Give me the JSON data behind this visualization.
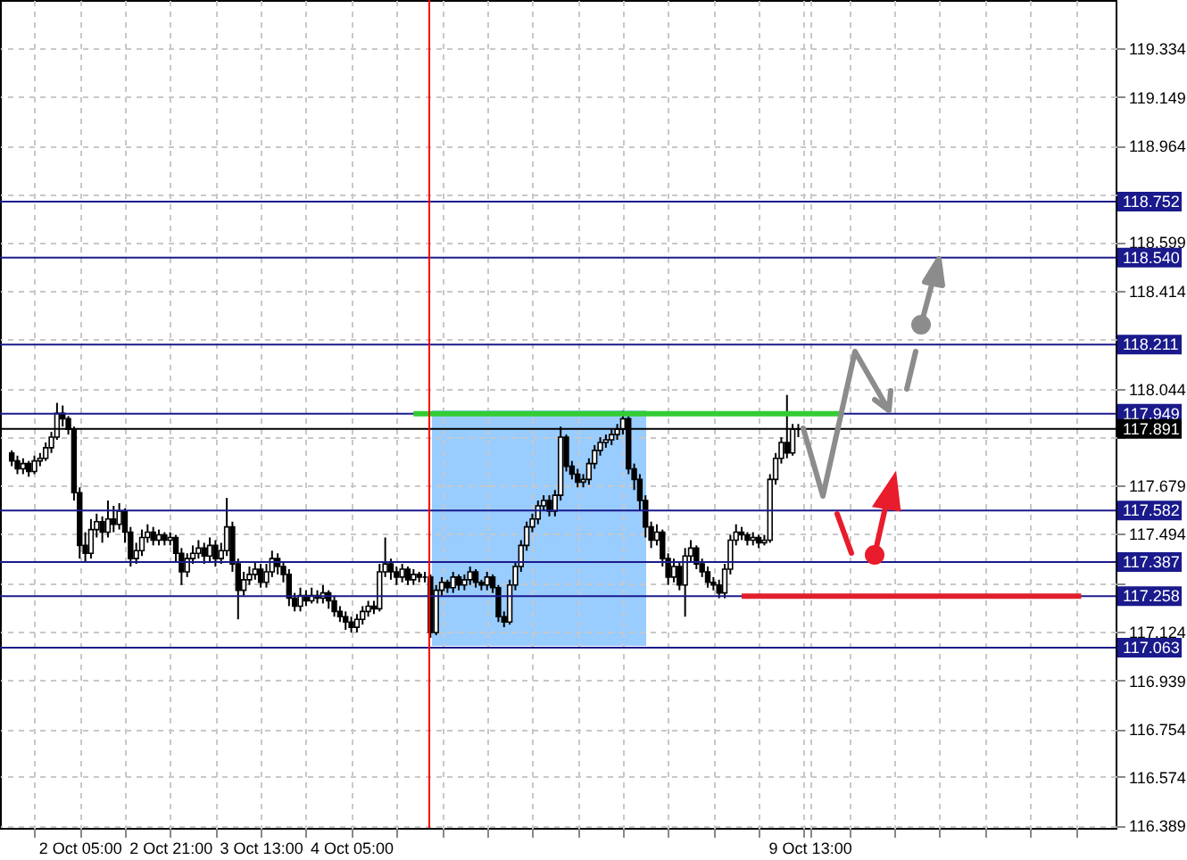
{
  "chart_data": {
    "type": "candlestick",
    "categories": [
      null,
      null,
      null,
      null,
      null,
      null,
      null,
      null,
      null,
      null,
      null,
      null,
      "2 Oct 05:00",
      null,
      null,
      null,
      null,
      null,
      null,
      null,
      null,
      null,
      null,
      null,
      null,
      null,
      null,
      null,
      "2 Oct 21:00",
      null,
      null,
      null,
      null,
      null,
      null,
      null,
      null,
      null,
      null,
      null,
      null,
      null,
      null,
      null,
      "3 Oct 13:00",
      null,
      null,
      null,
      null,
      null,
      null,
      null,
      null,
      null,
      null,
      null,
      null,
      null,
      null,
      null,
      "4 Oct 05:00",
      null,
      null,
      null,
      null,
      null,
      null,
      null,
      null,
      null,
      null,
      null,
      null,
      null,
      null,
      null,
      null,
      null,
      null,
      null,
      null,
      null,
      null,
      null,
      null,
      null,
      null,
      null,
      null,
      null,
      null,
      null,
      null,
      null,
      null,
      null,
      null,
      null,
      null,
      null,
      null,
      null,
      null,
      null,
      null,
      null,
      null,
      null,
      null,
      null,
      null,
      null,
      null,
      null,
      null,
      null,
      null,
      null,
      null,
      null,
      null,
      null,
      null,
      null,
      null,
      null,
      null,
      null,
      null,
      null,
      null,
      null,
      null,
      null,
      null,
      null,
      null,
      null,
      null,
      null,
      null,
      "9 Oct 13:00",
      null,
      null,
      null,
      null,
      null,
      null,
      null,
      null,
      null,
      null,
      null,
      null,
      null,
      null,
      null,
      null,
      null,
      null,
      null,
      null,
      null,
      null,
      null,
      null,
      null,
      null,
      null,
      null,
      null,
      null,
      null,
      null,
      null,
      null,
      null,
      null,
      null,
      null,
      null,
      null,
      null,
      null,
      null,
      null,
      null,
      null,
      null,
      null,
      null,
      null,
      null,
      null
    ],
    "ohlc": [
      [
        117.8,
        117.81,
        117.75,
        117.77
      ],
      [
        117.77,
        117.79,
        117.72,
        117.74
      ],
      [
        117.74,
        117.78,
        117.72,
        117.76
      ],
      [
        117.76,
        117.77,
        117.71,
        117.73
      ],
      [
        117.73,
        117.79,
        117.72,
        117.77
      ],
      [
        117.77,
        117.8,
        117.75,
        117.78
      ],
      [
        117.78,
        117.84,
        117.77,
        117.82
      ],
      [
        117.82,
        117.88,
        117.8,
        117.86
      ],
      [
        117.86,
        117.99,
        117.85,
        117.95
      ],
      [
        117.95,
        117.98,
        117.9,
        117.93
      ],
      [
        117.93,
        117.94,
        117.87,
        117.89
      ],
      [
        117.89,
        117.9,
        117.62,
        117.65
      ],
      [
        117.65,
        117.67,
        117.4,
        117.45
      ],
      [
        117.45,
        117.5,
        117.39,
        117.42
      ],
      [
        117.42,
        117.55,
        117.4,
        117.51
      ],
      [
        117.51,
        117.57,
        117.48,
        117.54
      ],
      [
        117.54,
        117.56,
        117.46,
        117.5
      ],
      [
        117.5,
        117.62,
        117.48,
        117.55
      ],
      [
        117.55,
        117.6,
        117.5,
        117.53
      ],
      [
        117.53,
        117.61,
        117.51,
        117.58
      ],
      [
        117.58,
        117.59,
        117.46,
        117.5
      ],
      [
        117.5,
        117.52,
        117.37,
        117.4
      ],
      [
        117.4,
        117.46,
        117.38,
        117.43
      ],
      [
        117.43,
        117.51,
        117.41,
        117.48
      ],
      [
        117.48,
        117.53,
        117.46,
        117.5
      ],
      [
        117.5,
        117.52,
        117.45,
        117.47
      ],
      [
        117.47,
        117.51,
        117.45,
        117.49
      ],
      [
        117.49,
        117.5,
        117.45,
        117.47
      ],
      [
        117.47,
        117.5,
        117.45,
        117.48
      ],
      [
        117.48,
        117.49,
        117.39,
        117.42
      ],
      [
        117.42,
        117.44,
        117.3,
        117.35
      ],
      [
        117.35,
        117.42,
        117.33,
        117.4
      ],
      [
        117.4,
        117.45,
        117.38,
        117.42
      ],
      [
        117.42,
        117.47,
        117.4,
        117.44
      ],
      [
        117.44,
        117.46,
        117.38,
        117.41
      ],
      [
        117.41,
        117.48,
        117.39,
        117.45
      ],
      [
        117.45,
        117.47,
        117.37,
        117.4
      ],
      [
        117.4,
        117.46,
        117.38,
        117.43
      ],
      [
        117.43,
        117.63,
        117.41,
        117.52
      ],
      [
        117.52,
        117.54,
        117.35,
        117.38
      ],
      [
        117.38,
        117.4,
        117.17,
        117.28
      ],
      [
        117.28,
        117.35,
        117.26,
        117.32
      ],
      [
        117.32,
        117.37,
        117.3,
        117.34
      ],
      [
        117.34,
        117.39,
        117.32,
        117.36
      ],
      [
        117.36,
        117.38,
        117.29,
        117.31
      ],
      [
        117.31,
        117.38,
        117.29,
        117.35
      ],
      [
        117.35,
        117.43,
        117.33,
        117.4
      ],
      [
        117.4,
        117.42,
        117.34,
        117.37
      ],
      [
        117.37,
        117.39,
        117.31,
        117.34
      ],
      [
        117.34,
        117.36,
        117.22,
        117.25
      ],
      [
        117.25,
        117.27,
        117.2,
        117.22
      ],
      [
        117.22,
        117.29,
        117.2,
        117.26
      ],
      [
        117.26,
        117.28,
        117.22,
        117.24
      ],
      [
        117.24,
        117.29,
        117.23,
        117.26
      ],
      [
        117.26,
        117.28,
        117.23,
        117.25
      ],
      [
        117.25,
        117.3,
        117.23,
        117.27
      ],
      [
        117.27,
        117.28,
        117.21,
        117.24
      ],
      [
        117.24,
        117.26,
        117.18,
        117.2
      ],
      [
        117.2,
        117.22,
        117.16,
        117.18
      ],
      [
        117.18,
        117.2,
        117.13,
        117.16
      ],
      [
        117.16,
        117.18,
        117.12,
        117.14
      ],
      [
        117.14,
        117.19,
        117.12,
        117.17
      ],
      [
        117.17,
        117.22,
        117.15,
        117.2
      ],
      [
        117.2,
        117.24,
        117.18,
        117.22
      ],
      [
        117.22,
        117.24,
        117.19,
        117.21
      ],
      [
        117.21,
        117.38,
        117.2,
        117.35
      ],
      [
        117.35,
        117.48,
        117.33,
        117.38
      ],
      [
        117.38,
        117.4,
        117.32,
        117.35
      ],
      [
        117.35,
        117.37,
        117.3,
        117.33
      ],
      [
        117.33,
        117.38,
        117.31,
        117.36
      ],
      [
        117.36,
        117.37,
        117.3,
        117.32
      ],
      [
        117.32,
        117.36,
        117.3,
        117.34
      ],
      [
        117.34,
        117.35,
        117.31,
        117.33
      ],
      [
        117.33,
        117.35,
        117.31,
        117.33
      ],
      [
        117.33,
        117.34,
        117.1,
        117.12
      ],
      [
        117.12,
        117.3,
        117.11,
        117.28
      ],
      [
        117.28,
        117.33,
        117.26,
        117.31
      ],
      [
        117.31,
        117.32,
        117.27,
        117.29
      ],
      [
        117.29,
        117.35,
        117.27,
        117.33
      ],
      [
        117.33,
        117.34,
        117.28,
        117.3
      ],
      [
        117.3,
        117.34,
        117.28,
        117.32
      ],
      [
        117.32,
        117.37,
        117.3,
        117.35
      ],
      [
        117.35,
        117.36,
        117.29,
        117.31
      ],
      [
        117.31,
        117.32,
        117.28,
        117.3
      ],
      [
        117.3,
        117.35,
        117.28,
        117.33
      ],
      [
        117.33,
        117.34,
        117.27,
        117.29
      ],
      [
        117.29,
        117.3,
        117.16,
        117.18
      ],
      [
        117.18,
        117.2,
        117.14,
        117.16
      ],
      [
        117.16,
        117.32,
        117.15,
        117.3
      ],
      [
        117.3,
        117.39,
        117.28,
        117.37
      ],
      [
        117.37,
        117.47,
        117.35,
        117.45
      ],
      [
        117.45,
        117.54,
        117.43,
        117.52
      ],
      [
        117.52,
        117.57,
        117.5,
        117.55
      ],
      [
        117.55,
        117.62,
        117.53,
        117.6
      ],
      [
        117.6,
        117.64,
        117.58,
        117.62
      ],
      [
        117.62,
        117.64,
        117.56,
        117.58
      ],
      [
        117.58,
        117.66,
        117.56,
        117.64
      ],
      [
        117.64,
        117.9,
        117.62,
        117.86
      ],
      [
        117.86,
        117.87,
        117.73,
        117.75
      ],
      [
        117.75,
        117.77,
        117.7,
        117.72
      ],
      [
        117.72,
        117.74,
        117.67,
        117.69
      ],
      [
        117.69,
        117.72,
        117.67,
        117.7
      ],
      [
        117.7,
        117.78,
        117.68,
        117.76
      ],
      [
        117.76,
        117.83,
        117.74,
        117.81
      ],
      [
        117.81,
        117.86,
        117.79,
        117.84
      ],
      [
        117.84,
        117.87,
        117.82,
        117.85
      ],
      [
        117.85,
        117.89,
        117.83,
        117.87
      ],
      [
        117.87,
        117.91,
        117.85,
        117.89
      ],
      [
        117.89,
        117.96,
        117.87,
        117.93
      ],
      [
        117.93,
        117.94,
        117.72,
        117.74
      ],
      [
        117.74,
        117.76,
        117.66,
        117.7
      ],
      [
        117.7,
        117.72,
        117.58,
        117.62
      ],
      [
        117.62,
        117.64,
        117.48,
        117.52
      ],
      [
        117.52,
        117.54,
        117.44,
        117.47
      ],
      [
        117.47,
        117.53,
        117.45,
        117.5
      ],
      [
        117.5,
        117.51,
        117.37,
        117.4
      ],
      [
        117.4,
        117.42,
        117.3,
        117.33
      ],
      [
        117.33,
        117.4,
        117.31,
        117.37
      ],
      [
        117.37,
        117.39,
        117.28,
        117.3
      ],
      [
        117.3,
        117.44,
        117.18,
        117.41
      ],
      [
        117.41,
        117.47,
        117.39,
        117.44
      ],
      [
        117.44,
        117.45,
        117.36,
        117.38
      ],
      [
        117.38,
        117.4,
        117.33,
        117.35
      ],
      [
        117.35,
        117.37,
        117.29,
        117.31
      ],
      [
        117.31,
        117.33,
        117.28,
        117.3
      ],
      [
        117.3,
        117.32,
        117.25,
        117.27
      ],
      [
        117.27,
        117.38,
        117.25,
        117.36
      ],
      [
        117.36,
        117.49,
        117.34,
        117.47
      ],
      [
        117.47,
        117.53,
        117.45,
        117.5
      ],
      [
        117.5,
        117.52,
        117.47,
        117.49
      ],
      [
        117.49,
        117.5,
        117.45,
        117.47
      ],
      [
        117.47,
        117.5,
        117.45,
        117.48
      ],
      [
        117.48,
        117.49,
        117.44,
        117.46
      ],
      [
        117.46,
        117.49,
        117.45,
        117.47
      ],
      [
        117.47,
        117.72,
        117.46,
        117.7
      ],
      [
        117.7,
        117.8,
        117.68,
        117.78
      ],
      [
        117.78,
        117.86,
        117.76,
        117.84
      ],
      [
        117.84,
        118.02,
        117.78,
        117.8
      ],
      [
        117.8,
        117.91,
        117.79,
        117.89
      ],
      [
        117.89,
        117.91,
        117.86,
        117.89
      ],
      null,
      null,
      null,
      null,
      null,
      null,
      null,
      null,
      null,
      null,
      null,
      null,
      null,
      null,
      null,
      null,
      null,
      null,
      null,
      null,
      null,
      null,
      null,
      null,
      null,
      null,
      null,
      null,
      null,
      null,
      null,
      null,
      null,
      null,
      null,
      null,
      null,
      null,
      null,
      null,
      null,
      null,
      null,
      null,
      null,
      null,
      null,
      null,
      null,
      null,
      null,
      null,
      null,
      null
    ],
    "series": [
      {
        "type": "line",
        "color": "#33cc33",
        "values": [
          null,
          null,
          null,
          null,
          null,
          null,
          null,
          null,
          null,
          null,
          null,
          null,
          null,
          null,
          null,
          null,
          null,
          null,
          null,
          null,
          null,
          null,
          null,
          null,
          null,
          null,
          null,
          null,
          null,
          null,
          null,
          null,
          null,
          null,
          null,
          null,
          null,
          null,
          null,
          null,
          null,
          null,
          null,
          null,
          null,
          null,
          null,
          null,
          null,
          null,
          null,
          null,
          null,
          null,
          null,
          null,
          null,
          null,
          null,
          null,
          null,
          null,
          null,
          null,
          null,
          null,
          null,
          null,
          null,
          null,
          null,
          117.949,
          117.949,
          117.949,
          117.949,
          117.949,
          117.949,
          117.949,
          117.949,
          117.949,
          117.949,
          117.949,
          117.949,
          117.949,
          117.949,
          117.949,
          117.949,
          117.949,
          117.949,
          117.949,
          117.949,
          117.949,
          117.949,
          117.949,
          117.949,
          117.949,
          117.949,
          117.949,
          117.949,
          117.949,
          117.949,
          117.949,
          117.949,
          117.949,
          117.949,
          117.949,
          117.949,
          117.949,
          117.949,
          117.949,
          117.949,
          117.949,
          117.949,
          117.949,
          117.949,
          117.949,
          117.949,
          117.949,
          117.949,
          117.949,
          117.949,
          117.949,
          117.949,
          117.949,
          117.949,
          117.949,
          117.949,
          117.949,
          117.949,
          117.949,
          117.949,
          117.949,
          117.949,
          117.949,
          117.949,
          117.949,
          117.949,
          117.949,
          117.949,
          117.949,
          117.949,
          117.949,
          117.949,
          117.949,
          117.949,
          117.949,
          117.949,
          117.949,
          null,
          null,
          null,
          null,
          null,
          null,
          null,
          null,
          null,
          null,
          null,
          null,
          null,
          null,
          null,
          null,
          null,
          null,
          null,
          null,
          null,
          null,
          null,
          null,
          null,
          null,
          null,
          null,
          null,
          null,
          null,
          null,
          null,
          null,
          null,
          null,
          null,
          null,
          null,
          null,
          null,
          null,
          null,
          null,
          null,
          null
        ]
      },
      {
        "type": "line",
        "color": "#e0202c",
        "values": [
          null,
          null,
          null,
          null,
          null,
          null,
          null,
          null,
          null,
          null,
          null,
          null,
          null,
          null,
          null,
          null,
          null,
          null,
          null,
          null,
          null,
          null,
          null,
          null,
          null,
          null,
          null,
          null,
          null,
          null,
          null,
          null,
          null,
          null,
          null,
          null,
          null,
          null,
          null,
          null,
          null,
          null,
          null,
          null,
          null,
          null,
          null,
          null,
          null,
          null,
          null,
          null,
          null,
          null,
          null,
          null,
          null,
          null,
          null,
          null,
          null,
          null,
          null,
          null,
          null,
          null,
          null,
          null,
          null,
          null,
          null,
          null,
          null,
          null,
          null,
          null,
          null,
          null,
          null,
          null,
          null,
          null,
          null,
          null,
          null,
          null,
          null,
          null,
          null,
          null,
          null,
          null,
          null,
          null,
          null,
          null,
          null,
          null,
          null,
          null,
          null,
          null,
          null,
          null,
          null,
          null,
          null,
          null,
          null,
          null,
          null,
          null,
          null,
          null,
          null,
          null,
          null,
          null,
          null,
          null,
          null,
          null,
          null,
          null,
          null,
          null,
          null,
          null,
          null,
          117.258,
          117.258,
          117.258,
          117.258,
          117.258,
          117.258,
          117.258,
          117.258,
          117.258,
          117.258,
          117.258,
          117.258,
          117.258,
          117.258,
          117.258,
          117.258,
          117.258,
          117.258,
          117.258,
          117.258,
          117.258,
          117.258,
          117.258,
          117.258,
          117.258,
          117.258,
          117.258,
          117.258,
          117.258,
          117.258,
          117.258,
          117.258,
          117.258,
          117.258,
          117.258,
          117.258,
          117.258,
          117.258,
          117.258,
          117.258,
          117.258,
          117.258,
          117.258,
          117.258,
          117.258,
          117.258,
          117.258,
          117.258,
          117.258,
          117.258,
          117.258,
          117.258,
          117.258,
          117.258,
          117.258,
          117.258,
          117.258,
          117.258,
          117.258,
          117.258,
          117.258,
          null,
          null,
          null,
          null
        ]
      }
    ],
    "ylim": [
      116.38,
      119.516
    ],
    "yticks": [
      116.389,
      116.574,
      116.754,
      116.939,
      117.124,
      {
        "value": 117.309,
        "label": null
      },
      117.494,
      117.679,
      {
        "value": 117.859,
        "label": null
      },
      118.044,
      {
        "value": 118.229,
        "label": null
      },
      118.414,
      118.599,
      {
        "value": 118.779,
        "label": null
      },
      118.964,
      119.149,
      119.334
    ],
    "grid": true,
    "ref_lines": [
      {
        "axis": "y",
        "value": 118.752,
        "label": "118.752",
        "color": "#1a1a8c"
      },
      {
        "axis": "y",
        "value": 118.54,
        "label": "118.540",
        "color": "#1a1a8c"
      },
      {
        "axis": "y",
        "value": 118.211,
        "label": "118.211",
        "color": "#1a1a8c"
      },
      {
        "axis": "y",
        "value": 117.949,
        "label": "117.949",
        "color": "#1a1a8c"
      },
      {
        "axis": "y",
        "value": 117.891,
        "label": "117.891",
        "color": "#000000"
      },
      {
        "axis": "y",
        "value": 117.582,
        "label": "117.582",
        "color": "#1a1a8c"
      },
      {
        "axis": "y",
        "value": 117.387,
        "label": "117.387",
        "color": "#1a1a8c"
      },
      {
        "axis": "y",
        "value": 117.258,
        "label": "117.258",
        "color": "#1a1a8c"
      },
      {
        "axis": "y",
        "value": 117.063,
        "label": "117.063",
        "color": "#1a1a8c"
      }
    ]
  }
}
